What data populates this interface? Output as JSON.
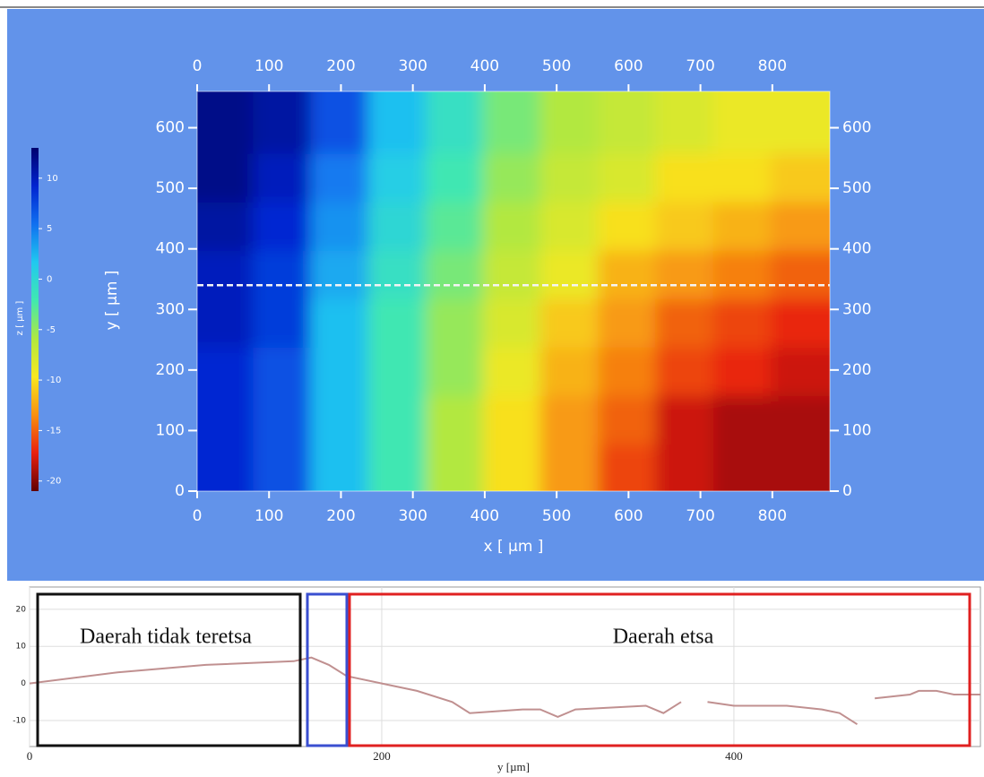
{
  "chart_data": [
    {
      "type": "heatmap",
      "xlabel": "x [ µm ]",
      "ylabel": "y [ µm ]",
      "colorbar_label": "z [ µm ]",
      "xlim": [
        0,
        880
      ],
      "ylim": [
        0,
        660
      ],
      "xticks": [
        0,
        100,
        200,
        300,
        400,
        500,
        600,
        700,
        800
      ],
      "yticks": [
        0,
        100,
        200,
        300,
        400,
        500,
        600
      ],
      "zlim": [
        -21,
        13
      ],
      "zticks": [
        10,
        5,
        0,
        -5,
        -10,
        -15,
        -20
      ],
      "colorscale": [
        "#00006e",
        "#0024d0",
        "#1070f0",
        "#20c8f0",
        "#40e8b0",
        "#b0e840",
        "#f8e820",
        "#f89010",
        "#e82010",
        "#600000"
      ],
      "profile_line_y": 340,
      "x": [
        40,
        120,
        200,
        280,
        360,
        440,
        520,
        600,
        680,
        760,
        840
      ],
      "y": [
        40,
        120,
        200,
        280,
        360,
        440,
        520,
        600
      ],
      "z": [
        [
          9,
          7,
          2,
          -2,
          -6,
          -10,
          -13,
          -16,
          -18,
          -19,
          -19
        ],
        [
          9,
          7,
          2,
          -2,
          -6,
          -10,
          -13,
          -15,
          -18,
          -19,
          -19
        ],
        [
          9,
          7,
          2,
          -2,
          -5,
          -9,
          -12,
          -14,
          -16,
          -17,
          -18
        ],
        [
          10,
          8,
          2,
          -2,
          -5,
          -8,
          -11,
          -13,
          -15,
          -16,
          -17
        ],
        [
          10,
          8,
          3,
          -1,
          -4,
          -7,
          -9,
          -12,
          -13,
          -14,
          -15
        ],
        [
          11,
          9,
          4,
          0,
          -3,
          -6,
          -8,
          -10,
          -11,
          -12,
          -13
        ],
        [
          12,
          10,
          5,
          1,
          -2,
          -5,
          -7,
          -8,
          -10,
          -10,
          -11
        ],
        [
          12,
          11,
          7,
          2,
          -1,
          -4,
          -6,
          -7,
          -8,
          -9,
          -9
        ]
      ]
    },
    {
      "type": "line",
      "xlabel": "y [µm]",
      "xlim": [
        0,
        540
      ],
      "ylim": [
        -17,
        26
      ],
      "xticks": [
        0,
        200,
        400
      ],
      "yticks": [
        -10,
        0,
        10,
        20
      ],
      "grid": true,
      "annotations": [
        "Daerah tidak teretsa",
        "Daerah etsa"
      ],
      "x": [
        0,
        50,
        100,
        150,
        160,
        170,
        180,
        200,
        220,
        240,
        250,
        280,
        290,
        300,
        310,
        350,
        360,
        370,
        380,
        385,
        400,
        430,
        450,
        460,
        470,
        478,
        480,
        500,
        505,
        515,
        525,
        540
      ],
      "series": [
        {
          "color": "#c09090",
          "values": [
            0,
            3,
            5,
            6,
            7,
            5,
            2,
            0,
            -2,
            -5,
            -8,
            -7,
            -7,
            -9,
            -7,
            -6,
            -8,
            -5,
            null,
            -5,
            -6,
            -6,
            -7,
            -8,
            -11,
            null,
            -4,
            -3,
            -2,
            -2,
            -3,
            -3
          ]
        }
      ]
    }
  ]
}
